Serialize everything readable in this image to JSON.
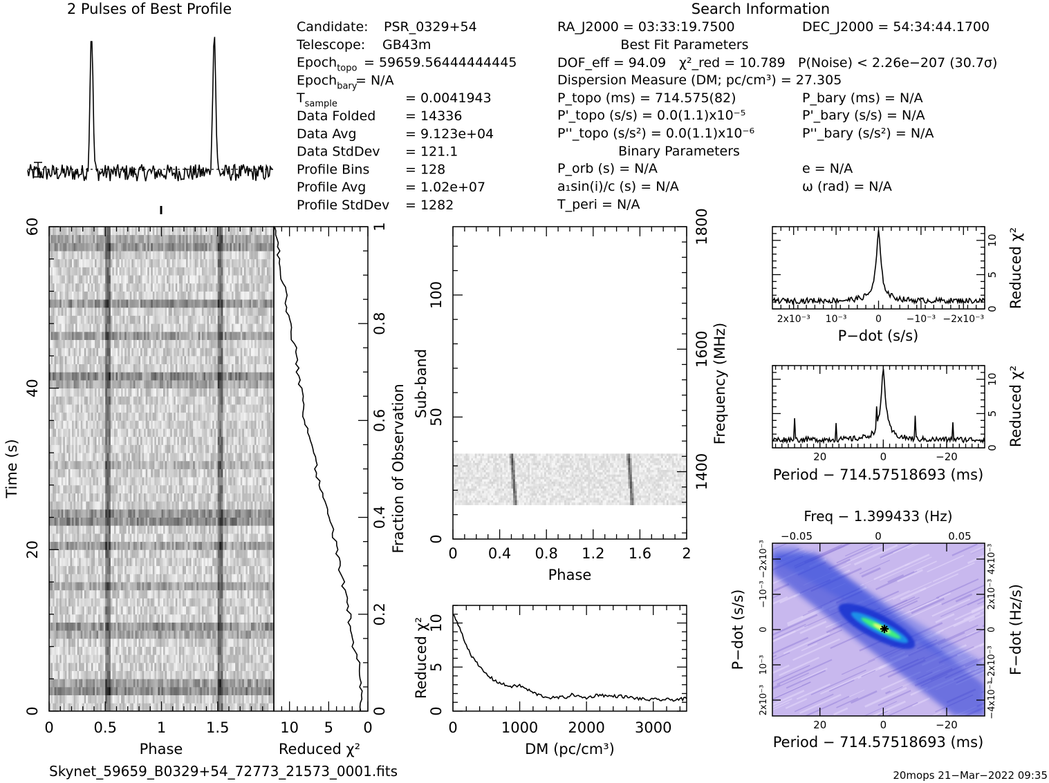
{
  "header": {
    "profile_title": "2 Pulses of Best Profile",
    "search_title": "Search Information",
    "best_fit_title": "Best Fit Parameters",
    "binary_title": "Binary Parameters"
  },
  "info_left": [
    {
      "label": "Candidate:",
      "value": "PSR_0329+54"
    },
    {
      "label": "Telescope:",
      "value": "GB43m"
    },
    {
      "label": "Epoch_topo",
      "value": "= 59659.56444444445"
    },
    {
      "label": "Epoch_bary",
      "value": "= N/A"
    },
    {
      "label": "T_sample",
      "value": "=   0.0041943"
    },
    {
      "label": "Data Folded",
      "value": "=   14336"
    },
    {
      "label": "Data Avg",
      "value": "=   9.123e+04"
    },
    {
      "label": "Data StdDev",
      "value": "=   121.1"
    },
    {
      "label": "Profile Bins",
      "value": "=   128"
    },
    {
      "label": "Profile Avg",
      "value": "=   1.02e+07"
    },
    {
      "label": "Profile StdDev",
      "value": "=   1282"
    }
  ],
  "info_right": {
    "ra": "RA_J2000 = 03:33:19.7500",
    "dec": "DEC_J2000 = 54:34:44.1700",
    "dof": "DOF_eff = 94.09",
    "chi2": "χ²_red = 10.789",
    "pnoise": "P(Noise) < 2.26e−207  (30.7σ)",
    "dm": "Dispersion Measure (DM; pc/cm³) = 27.305",
    "p_topo": "P_topo (ms) =  714.575(82)",
    "p_bary": "P_bary (ms) = N/A",
    "pd_topo": "P'_topo (s/s) = 0.0(1.1)x10⁻⁵",
    "pd_bary": "P'_bary (s/s) = N/A",
    "pdd_topo": "P''_topo (s/s²) = 0.0(1.1)x10⁻⁶",
    "pdd_bary": "P''_bary (s/s²) = N/A",
    "p_orb": "P_orb (s) = N/A",
    "e": "e = N/A",
    "a1": "a₁sin(i)/c (s) = N/A",
    "omega": "ω (rad) = N/A",
    "t_peri": "T_peri = N/A"
  },
  "footer": {
    "filename": "Skynet_59659_B0329+54_72773_21573_0001.fits",
    "stamp": "20mops 21−Mar−2022 09:35"
  },
  "colors": {
    "ink": "#000000",
    "heat_low": "#c8b8ee",
    "heat_mid": "#2030d0",
    "heat_high": "#40f080"
  },
  "chart_data": [
    {
      "type": "line",
      "title": "2 Pulses of Best Profile",
      "xlim": [
        0,
        2
      ],
      "peaks": [
        {
          "x": 0.52,
          "rel_height": 1.0
        },
        {
          "x": 1.52,
          "rel_height": 1.0
        }
      ]
    },
    {
      "type": "heatmap",
      "name": "time-phase",
      "xlabel": "Phase",
      "ylabel": "Time (s)",
      "xlim": [
        0,
        2
      ],
      "ylim": [
        0,
        60
      ],
      "xticks": [
        "0",
        "0.5",
        "1",
        "1.5"
      ],
      "yticks": [
        "0",
        "20",
        "40",
        "60"
      ],
      "pulse_phases": [
        0.52,
        1.52
      ]
    },
    {
      "type": "line",
      "name": "reduced-chi2-vs-time",
      "xlabel": "Reduced χ²",
      "ylabel": "Fraction of Observation",
      "xlim": [
        12,
        0
      ],
      "ylim": [
        0,
        1
      ],
      "xticks": [
        "10",
        "5",
        "0"
      ],
      "yticks": [
        "0",
        "0.2",
        "0.4",
        "0.6",
        "0.8",
        "1"
      ],
      "points": [
        [
          0.8,
          0
        ],
        [
          0.9,
          0.05
        ],
        [
          1.2,
          0.1
        ],
        [
          2.1,
          0.15
        ],
        [
          2.4,
          0.2
        ],
        [
          3.0,
          0.25
        ],
        [
          3.6,
          0.3
        ],
        [
          4.2,
          0.35
        ],
        [
          5.0,
          0.4
        ],
        [
          6.0,
          0.45
        ],
        [
          6.6,
          0.5
        ],
        [
          7.2,
          0.55
        ],
        [
          8.0,
          0.6
        ],
        [
          8.4,
          0.65
        ],
        [
          8.9,
          0.7
        ],
        [
          9.3,
          0.75
        ],
        [
          10.0,
          0.8
        ],
        [
          10.4,
          0.85
        ],
        [
          11.0,
          0.9
        ],
        [
          11.4,
          0.95
        ],
        [
          11.8,
          1.0
        ]
      ]
    },
    {
      "type": "heatmap",
      "name": "subband-phase",
      "xlabel": "Phase",
      "ylabel": "Sub-band",
      "y2label": "Frequency (MHz)",
      "xlim": [
        0,
        2
      ],
      "ylim": [
        0,
        128
      ],
      "xticks": [
        "0",
        "0.4",
        "0.8",
        "1.2",
        "1.6",
        "2"
      ],
      "yticks": [
        "0",
        "50",
        "100"
      ],
      "y2ticks": [
        "1400",
        "1600",
        "1800"
      ],
      "filled_subbands": [
        14,
        35
      ],
      "pulse_phases": [
        0.52,
        1.52
      ]
    },
    {
      "type": "line",
      "name": "dm-curve",
      "xlabel": "DM (pc/cm³)",
      "ylabel": "Reduced χ²",
      "xlim": [
        0,
        3500
      ],
      "ylim": [
        0,
        12
      ],
      "xticks": [
        "0",
        "1000",
        "2000",
        "3000"
      ],
      "yticks": [
        "0",
        "5",
        "10"
      ],
      "points": [
        [
          0,
          11
        ],
        [
          100,
          9.5
        ],
        [
          200,
          7.5
        ],
        [
          300,
          6.0
        ],
        [
          400,
          5.0
        ],
        [
          500,
          4.2
        ],
        [
          600,
          3.6
        ],
        [
          700,
          3.2
        ],
        [
          800,
          2.9
        ],
        [
          900,
          2.8
        ],
        [
          1000,
          2.9
        ],
        [
          1100,
          2.5
        ],
        [
          1200,
          2.1
        ],
        [
          1300,
          1.8
        ],
        [
          1400,
          1.6
        ],
        [
          1500,
          1.5
        ],
        [
          1700,
          1.6
        ],
        [
          1800,
          1.9
        ],
        [
          1900,
          1.6
        ],
        [
          2000,
          1.5
        ],
        [
          2200,
          1.9
        ],
        [
          2300,
          1.7
        ],
        [
          2500,
          1.7
        ],
        [
          2700,
          1.5
        ],
        [
          2900,
          1.3
        ],
        [
          3100,
          1.3
        ],
        [
          3300,
          1.3
        ],
        [
          3500,
          1.4
        ]
      ]
    },
    {
      "type": "line",
      "name": "pdot-curve",
      "xlabel": "P−dot (s/s)",
      "ylabel": "Reduced χ²",
      "xlim": [
        0.0025,
        -0.0025
      ],
      "ylim": [
        0,
        12
      ],
      "xticks": [
        "2x10⁻³",
        "10⁻³",
        "0",
        "−10⁻³",
        "−2x10⁻³"
      ],
      "yticks": [
        "0",
        "5",
        "10"
      ],
      "peak": {
        "x": 0,
        "y": 11
      }
    },
    {
      "type": "line",
      "name": "period-curve",
      "xlabel": "Period − 714.57518693 (ms)",
      "ylabel": "Reduced χ²",
      "xlim": [
        35,
        -32
      ],
      "ylim": [
        0,
        12
      ],
      "xticks": [
        "20",
        "0",
        "−20"
      ],
      "yticks": [
        "0",
        "5",
        "10"
      ],
      "peak": {
        "x": 0,
        "y": 11
      }
    },
    {
      "type": "heatmap",
      "name": "period-pdot",
      "title": "Freq − 1.399433 (Hz)",
      "xlabel": "Period − 714.57518693 (ms)",
      "ylabel": "P−dot (s/s)",
      "y2label": "F−dot (Hz/s)",
      "xticks": [
        "20",
        "0",
        "−20"
      ],
      "x2ticks": [
        "−0.05",
        "0",
        "0.05"
      ],
      "yticks": [
        "2x10⁻³",
        "10⁻³",
        "0",
        "−10⁻³",
        "−2x10⁻³"
      ],
      "y2ticks": [
        "−4x10⁻³",
        "−2x10⁻³",
        "0",
        "2x10⁻³",
        "4x10⁻³"
      ],
      "best": {
        "x": 0,
        "y": 0
      }
    }
  ]
}
